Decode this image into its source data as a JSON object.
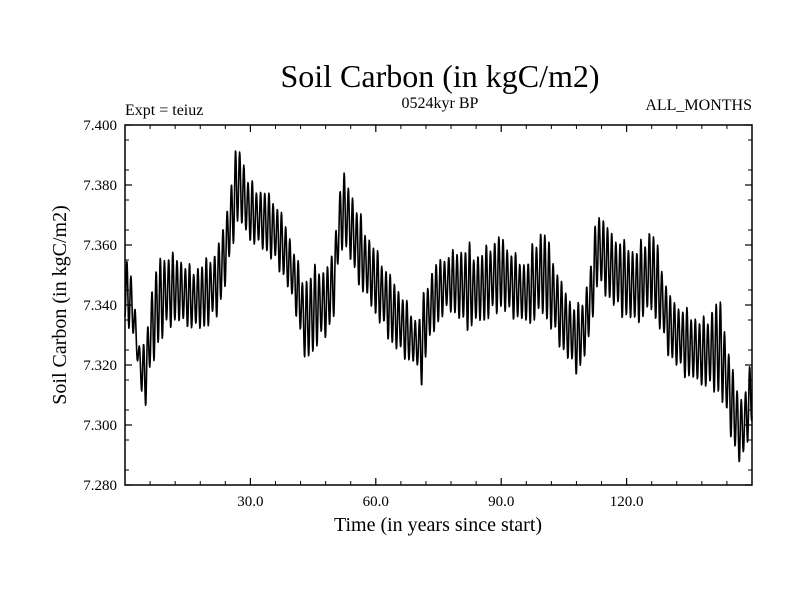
{
  "chart_data": {
    "type": "line",
    "title": "Soil Carbon (in kgC/m2)",
    "subtitle": "0524kyr BP",
    "left_annotation": "Expt = teiuz",
    "right_annotation": "ALL_MONTHS",
    "xlabel": "Time (in years since start)",
    "ylabel": "Soil Carbon (in kgC/m2)",
    "xlim": [
      0,
      150
    ],
    "ylim": [
      7.28,
      7.4
    ],
    "x_ticks": [
      30,
      60,
      90,
      120
    ],
    "x_tick_labels": [
      "30.0",
      "60.0",
      "90.0",
      "120.0"
    ],
    "y_ticks": [
      7.28,
      7.3,
      7.32,
      7.34,
      7.36,
      7.38,
      7.4
    ],
    "y_tick_labels": [
      "7.280",
      "7.300",
      "7.320",
      "7.340",
      "7.360",
      "7.380",
      "7.400"
    ],
    "grid": false,
    "series": [
      {
        "name": "Soil Carbon",
        "color": "#000000",
        "envelope_x": [
          0,
          1,
          2,
          3,
          4,
          5,
          6,
          8,
          10,
          12,
          14,
          16,
          18,
          20,
          22,
          24,
          25,
          26,
          27,
          28,
          29,
          30,
          32,
          34,
          36,
          38,
          40,
          42,
          43,
          44,
          46,
          48,
          50,
          51,
          52,
          53,
          54,
          56,
          58,
          60,
          62,
          64,
          66,
          68,
          70,
          71,
          72,
          74,
          76,
          78,
          80,
          82,
          84,
          86,
          88,
          90,
          92,
          94,
          96,
          98,
          100,
          102,
          104,
          106,
          108,
          110,
          112,
          113,
          114,
          116,
          118,
          120,
          122,
          124,
          126,
          128,
          130,
          132,
          134,
          136,
          138,
          140,
          142,
          143,
          144,
          145,
          146,
          147,
          148,
          149,
          150
        ],
        "envelope_high": [
          7.353,
          7.357,
          7.347,
          7.33,
          7.325,
          7.33,
          7.345,
          7.357,
          7.359,
          7.358,
          7.356,
          7.353,
          7.355,
          7.357,
          7.36,
          7.37,
          7.38,
          7.388,
          7.397,
          7.392,
          7.385,
          7.382,
          7.38,
          7.379,
          7.376,
          7.37,
          7.362,
          7.352,
          7.35,
          7.352,
          7.355,
          7.353,
          7.36,
          7.378,
          7.385,
          7.384,
          7.38,
          7.372,
          7.365,
          7.36,
          7.355,
          7.35,
          7.346,
          7.34,
          7.335,
          7.342,
          7.348,
          7.355,
          7.357,
          7.359,
          7.36,
          7.362,
          7.358,
          7.36,
          7.363,
          7.365,
          7.36,
          7.357,
          7.355,
          7.363,
          7.368,
          7.36,
          7.35,
          7.345,
          7.34,
          7.345,
          7.36,
          7.375,
          7.372,
          7.366,
          7.364,
          7.362,
          7.36,
          7.363,
          7.368,
          7.358,
          7.345,
          7.342,
          7.34,
          7.338,
          7.336,
          7.339,
          7.345,
          7.34,
          7.33,
          7.322,
          7.316,
          7.312,
          7.31,
          7.318,
          7.322
        ],
        "envelope_low": [
          7.335,
          7.33,
          7.328,
          7.32,
          7.31,
          7.305,
          7.315,
          7.325,
          7.33,
          7.333,
          7.332,
          7.331,
          7.33,
          7.332,
          7.335,
          7.345,
          7.352,
          7.36,
          7.366,
          7.364,
          7.362,
          7.36,
          7.358,
          7.356,
          7.352,
          7.348,
          7.34,
          7.33,
          7.318,
          7.32,
          7.325,
          7.328,
          7.335,
          7.35,
          7.358,
          7.357,
          7.352,
          7.345,
          7.34,
          7.335,
          7.33,
          7.325,
          7.322,
          7.32,
          7.318,
          7.311,
          7.322,
          7.33,
          7.335,
          7.337,
          7.333,
          7.33,
          7.332,
          7.333,
          7.335,
          7.337,
          7.335,
          7.334,
          7.332,
          7.333,
          7.335,
          7.33,
          7.325,
          7.32,
          7.316,
          7.32,
          7.335,
          7.345,
          7.343,
          7.34,
          7.336,
          7.334,
          7.332,
          7.334,
          7.336,
          7.33,
          7.322,
          7.318,
          7.315,
          7.313,
          7.312,
          7.31,
          7.308,
          7.305,
          7.3,
          7.295,
          7.29,
          7.285,
          7.288,
          7.294,
          7.3
        ]
      }
    ]
  }
}
